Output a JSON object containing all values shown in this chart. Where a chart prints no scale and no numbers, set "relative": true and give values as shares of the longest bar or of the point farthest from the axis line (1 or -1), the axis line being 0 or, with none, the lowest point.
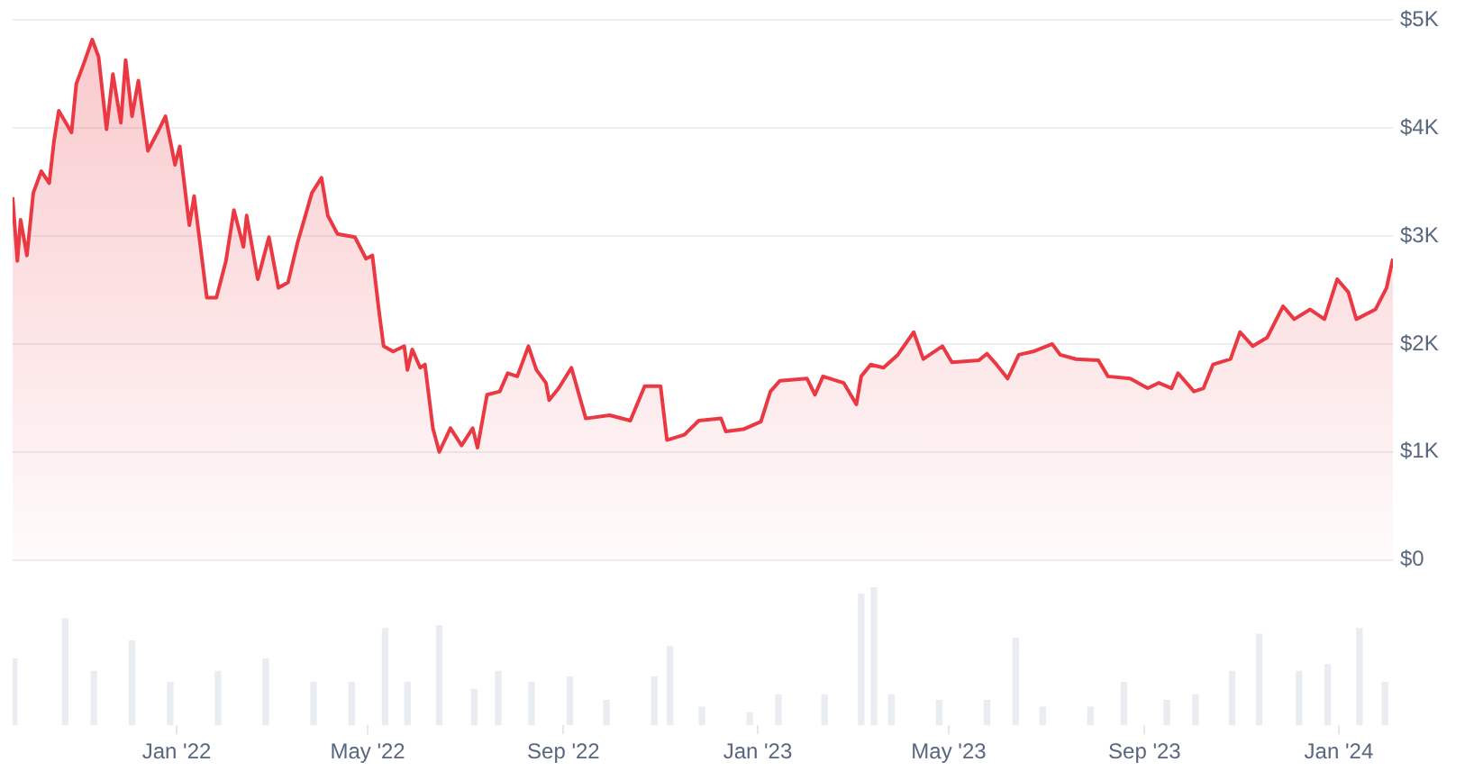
{
  "chart_data": [
    {
      "type": "area",
      "color": "#ea3943",
      "tick_labels": "y",
      "grid": "y",
      "x": [
        "2021-09-20",
        "2021-09-23",
        "2021-09-25",
        "2021-09-29",
        "2021-10-03",
        "2021-10-08",
        "2021-10-13",
        "2021-10-16",
        "2021-10-19",
        "2021-10-27",
        "2021-10-30",
        "2021-11-04",
        "2021-11-09",
        "2021-11-13",
        "2021-11-18",
        "2021-11-22",
        "2021-11-27",
        "2021-11-30",
        "2021-12-04",
        "2021-12-08",
        "2021-12-14",
        "2021-12-20",
        "2021-12-25",
        "2021-12-31",
        "2022-01-03",
        "2022-01-09",
        "2022-01-12",
        "2022-01-20",
        "2022-01-26",
        "2022-02-01",
        "2022-02-06",
        "2022-02-12",
        "2022-02-14",
        "2022-02-21",
        "2022-02-28",
        "2022-03-06",
        "2022-03-12",
        "2022-03-18",
        "2022-03-27",
        "2022-04-02",
        "2022-04-06",
        "2022-04-12",
        "2022-04-23",
        "2022-04-30",
        "2022-05-04",
        "2022-05-08",
        "2022-05-11",
        "2022-05-17",
        "2022-05-24",
        "2022-05-26",
        "2022-05-29",
        "2022-06-03",
        "2022-06-06",
        "2022-06-11",
        "2022-06-15",
        "2022-06-22",
        "2022-06-29",
        "2022-07-06",
        "2022-07-09",
        "2022-07-15",
        "2022-07-23",
        "2022-07-28",
        "2022-08-03",
        "2022-08-10",
        "2022-08-15",
        "2022-08-21",
        "2022-08-23",
        "2022-08-29",
        "2022-09-06",
        "2022-09-15",
        "2022-09-30",
        "2022-10-13",
        "2022-10-22",
        "2022-11-01",
        "2022-11-05",
        "2022-11-16",
        "2022-11-25",
        "2022-12-09",
        "2022-12-12",
        "2022-12-23",
        "2023-01-03",
        "2023-01-09",
        "2023-01-15",
        "2023-02-01",
        "2023-02-06",
        "2023-02-11",
        "2023-02-24",
        "2023-03-04",
        "2023-03-07",
        "2023-03-13",
        "2023-03-21",
        "2023-03-30",
        "2023-04-09",
        "2023-04-15",
        "2023-04-27",
        "2023-05-03",
        "2023-05-20",
        "2023-05-25",
        "2023-05-31",
        "2023-06-07",
        "2023-06-14",
        "2023-06-23",
        "2023-07-05",
        "2023-07-10",
        "2023-07-20",
        "2023-08-03",
        "2023-08-09",
        "2023-08-23",
        "2023-09-03",
        "2023-09-10",
        "2023-09-18",
        "2023-09-22",
        "2023-10-02",
        "2023-10-08",
        "2023-10-14",
        "2023-10-25",
        "2023-10-31",
        "2023-11-08",
        "2023-11-17",
        "2023-11-27",
        "2023-12-04",
        "2023-12-14",
        "2023-12-23",
        "2023-12-31",
        "2024-01-07",
        "2024-01-12",
        "2024-01-24",
        "2024-01-31",
        "2024-02-04"
      ],
      "values": [
        3360,
        2770,
        3150,
        2820,
        3400,
        3600,
        3490,
        3880,
        4160,
        3960,
        4410,
        4610,
        4820,
        4660,
        3990,
        4500,
        4050,
        4630,
        4110,
        4440,
        3790,
        3960,
        4110,
        3660,
        3830,
        3100,
        3370,
        2430,
        2430,
        2770,
        3240,
        2900,
        3190,
        2600,
        2990,
        2520,
        2570,
        2940,
        3400,
        3540,
        3190,
        3020,
        2990,
        2790,
        2820,
        2320,
        1980,
        1930,
        1980,
        1760,
        1950,
        1780,
        1810,
        1220,
        1000,
        1220,
        1060,
        1220,
        1040,
        1530,
        1560,
        1730,
        1700,
        1980,
        1760,
        1640,
        1480,
        1590,
        1780,
        1310,
        1340,
        1290,
        1610,
        1610,
        1110,
        1160,
        1290,
        1310,
        1190,
        1210,
        1280,
        1560,
        1660,
        1680,
        1530,
        1700,
        1640,
        1440,
        1700,
        1810,
        1780,
        1900,
        2110,
        1860,
        1980,
        1830,
        1850,
        1910,
        1810,
        1680,
        1900,
        1930,
        2000,
        1900,
        1860,
        1850,
        1700,
        1680,
        1590,
        1640,
        1590,
        1730,
        1560,
        1590,
        1810,
        1860,
        2110,
        1980,
        2060,
        2350,
        2230,
        2320,
        2230,
        2600,
        2480,
        2230,
        2320,
        2520,
        2790
      ],
      "xlim": [
        "2021-09-20",
        "2024-02-04"
      ],
      "ylim": [
        0,
        5000
      ],
      "yticks": [
        {
          "value": 0,
          "label": "$0"
        },
        {
          "value": 1000,
          "label": "$1K"
        },
        {
          "value": 2000,
          "label": "$2K"
        },
        {
          "value": 3000,
          "label": "$3K"
        },
        {
          "value": 4000,
          "label": "$4K"
        },
        {
          "value": 5000,
          "label": "$5K"
        }
      ]
    },
    {
      "type": "bar",
      "color": "#e9edf1",
      "relative": true,
      "tick_labels": "x",
      "x": [
        "2021-09-21",
        "2021-10-23",
        "2021-11-10",
        "2021-12-04",
        "2021-12-28",
        "2022-01-27",
        "2022-02-26",
        "2022-03-28",
        "2022-04-21",
        "2022-05-12",
        "2022-05-26",
        "2022-06-15",
        "2022-07-07",
        "2022-07-22",
        "2022-08-12",
        "2022-09-05",
        "2022-09-28",
        "2022-10-28",
        "2022-11-07",
        "2022-11-27",
        "2022-12-27",
        "2023-01-14",
        "2023-02-12",
        "2023-03-07",
        "2023-03-15",
        "2023-03-26",
        "2023-04-25",
        "2023-05-25",
        "2023-06-12",
        "2023-06-29",
        "2023-07-29",
        "2023-08-19",
        "2023-09-15",
        "2023-10-03",
        "2023-10-26",
        "2023-11-12",
        "2023-12-07",
        "2023-12-25",
        "2024-01-14",
        "2024-01-30"
      ],
      "values": [
        0.48,
        0.77,
        0.39,
        0.61,
        0.31,
        0.39,
        0.48,
        0.31,
        0.31,
        0.7,
        0.31,
        0.72,
        0.26,
        0.39,
        0.31,
        0.35,
        0.18,
        0.35,
        0.57,
        0.13,
        0.09,
        0.22,
        0.22,
        0.95,
        1,
        0.22,
        0.18,
        0.18,
        0.63,
        0.13,
        0.13,
        0.31,
        0.18,
        0.22,
        0.39,
        0.66,
        0.39,
        0.44,
        0.7,
        0.31
      ],
      "xlim": [
        "2021-09-20",
        "2024-02-04"
      ],
      "xticks": [
        {
          "value": "2022-01",
          "label": "Jan '22"
        },
        {
          "value": "2022-05",
          "label": "May '22"
        },
        {
          "value": "2022-09",
          "label": "Sep '22"
        },
        {
          "value": "2023-01",
          "label": "Jan '23"
        },
        {
          "value": "2023-05",
          "label": "May '23"
        },
        {
          "value": "2023-09",
          "label": "Sep '23"
        },
        {
          "value": "2024-01",
          "label": "Jan '24"
        }
      ]
    }
  ]
}
